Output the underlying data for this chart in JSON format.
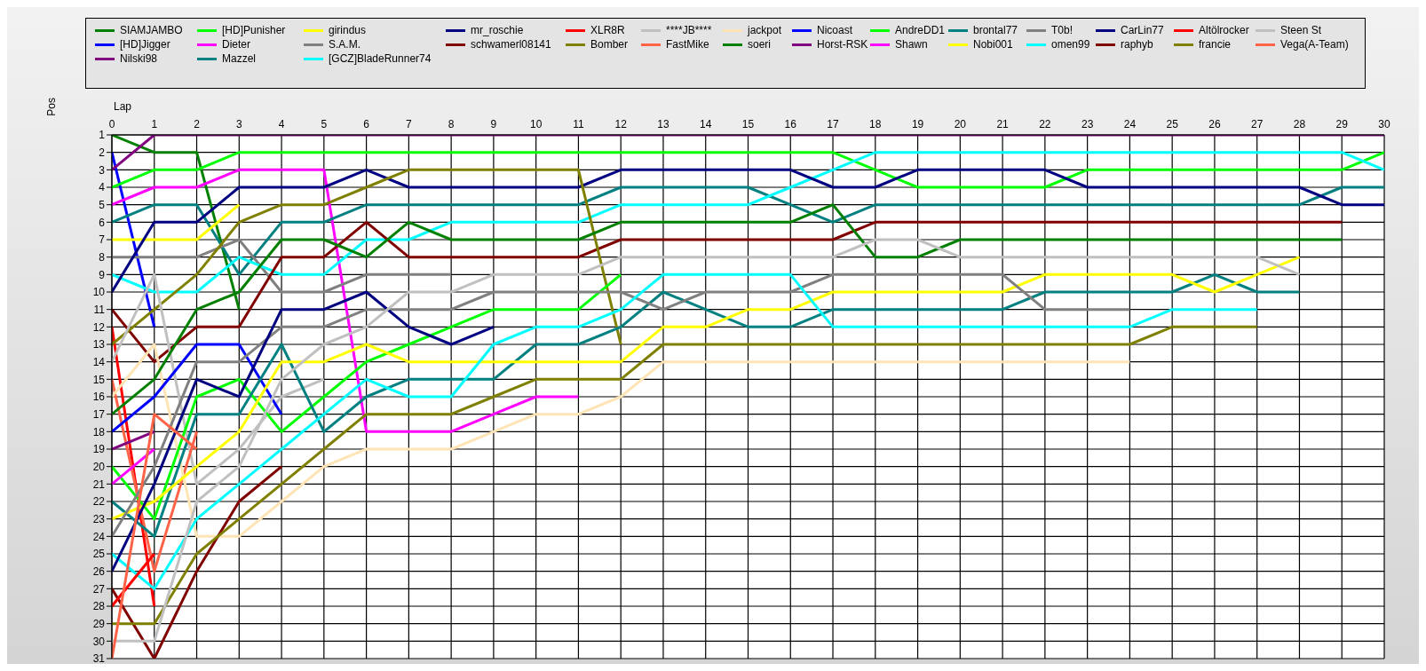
{
  "chart_data": {
    "type": "line",
    "xlabel": "Lap",
    "ylabel": "Pos",
    "legend": "top",
    "grid": true,
    "x": [
      0,
      1,
      2,
      3,
      4,
      5,
      6,
      7,
      8,
      9,
      10,
      11,
      12,
      13,
      14,
      15,
      16,
      17,
      18,
      19,
      20,
      21,
      22,
      23,
      24,
      25,
      26,
      27,
      28,
      29,
      30
    ],
    "xlim": [
      0,
      30
    ],
    "xticks": [
      0,
      1,
      2,
      3,
      4,
      5,
      6,
      7,
      8,
      9,
      10,
      11,
      12,
      13,
      14,
      15,
      16,
      17,
      18,
      19,
      20,
      21,
      22,
      23,
      24,
      25,
      26,
      27,
      28,
      29,
      30
    ],
    "ylim": [
      31,
      1
    ],
    "yticks": [
      1,
      2,
      3,
      4,
      5,
      6,
      7,
      8,
      9,
      10,
      11,
      12,
      13,
      14,
      15,
      16,
      17,
      18,
      19,
      20,
      21,
      22,
      23,
      24,
      25,
      26,
      27,
      28,
      29,
      30,
      31
    ],
    "series": [
      {
        "name": "SIAMJAMBO",
        "color": "#008000",
        "values": [
          1,
          2,
          2,
          11,
          null,
          null,
          null,
          null,
          null,
          null,
          null,
          null,
          null,
          null,
          null,
          null,
          null,
          null,
          null,
          null,
          null,
          null,
          null,
          null,
          null,
          null,
          null,
          null,
          null,
          null,
          null
        ]
      },
      {
        "name": "[HD]Jigger",
        "color": "#0000ff",
        "values": [
          2,
          12,
          null,
          null,
          null,
          null,
          null,
          null,
          null,
          null,
          null,
          null,
          null,
          null,
          null,
          null,
          null,
          null,
          null,
          null,
          null,
          null,
          null,
          null,
          null,
          null,
          null,
          null,
          null,
          null,
          null
        ]
      },
      {
        "name": "Nilski98",
        "color": "#800080",
        "values": [
          3,
          1,
          1,
          1,
          1,
          1,
          1,
          1,
          1,
          1,
          1,
          1,
          1,
          1,
          1,
          1,
          1,
          1,
          1,
          1,
          1,
          1,
          1,
          1,
          1,
          1,
          1,
          1,
          1,
          1,
          1
        ]
      },
      {
        "name": "[HD]Punisher",
        "color": "#00ff00",
        "values": [
          4,
          3,
          3,
          2,
          2,
          2,
          2,
          2,
          2,
          2,
          2,
          2,
          2,
          2,
          2,
          2,
          2,
          2,
          3,
          4,
          4,
          4,
          4,
          3,
          3,
          3,
          3,
          3,
          3,
          3,
          2
        ]
      },
      {
        "name": "Dieter",
        "color": "#ff00ff",
        "values": [
          5,
          4,
          4,
          3,
          3,
          3,
          18,
          18,
          18,
          17,
          16,
          16,
          null,
          null,
          null,
          null,
          null,
          null,
          null,
          null,
          null,
          null,
          null,
          null,
          null,
          null,
          null,
          null,
          null,
          null,
          null
        ]
      },
      {
        "name": "Mazzel",
        "color": "#008080",
        "values": [
          6,
          5,
          5,
          9,
          6,
          6,
          5,
          5,
          5,
          5,
          5,
          5,
          4,
          4,
          4,
          4,
          5,
          6,
          5,
          5,
          5,
          5,
          5,
          5,
          5,
          5,
          5,
          5,
          5,
          4,
          4
        ]
      },
      {
        "name": "girindus",
        "color": "#ffff00",
        "values": [
          7,
          7,
          7,
          5,
          null,
          null,
          null,
          null,
          null,
          null,
          null,
          null,
          null,
          null,
          null,
          null,
          null,
          null,
          null,
          null,
          null,
          null,
          null,
          null,
          null,
          null,
          null,
          null,
          null,
          null,
          null
        ]
      },
      {
        "name": "S.A.M.",
        "color": "#808080",
        "values": [
          8,
          8,
          8,
          7,
          10,
          10,
          9,
          9,
          9,
          null,
          null,
          null,
          null,
          null,
          null,
          null,
          null,
          null,
          null,
          null,
          null,
          null,
          null,
          null,
          null,
          null,
          null,
          null,
          null,
          null,
          null
        ]
      },
      {
        "name": "[GCZ]BladeRunner74",
        "color": "#00ffff",
        "values": [
          9,
          10,
          10,
          8,
          9,
          9,
          7,
          7,
          6,
          6,
          6,
          6,
          5,
          5,
          5,
          5,
          4,
          3,
          2,
          2,
          2,
          2,
          2,
          2,
          2,
          2,
          2,
          2,
          2,
          2,
          3
        ]
      },
      {
        "name": "mr_roschie",
        "color": "#000080",
        "values": [
          10,
          6,
          6,
          4,
          4,
          4,
          3,
          4,
          4,
          4,
          4,
          4,
          3,
          3,
          3,
          3,
          3,
          4,
          4,
          3,
          3,
          3,
          3,
          4,
          4,
          4,
          4,
          4,
          4,
          5,
          5
        ]
      },
      {
        "name": "schwamerl08141",
        "color": "#800000",
        "values": [
          11,
          14,
          12,
          12,
          8,
          8,
          6,
          8,
          8,
          8,
          8,
          8,
          7,
          7,
          7,
          7,
          7,
          7,
          6,
          6,
          6,
          6,
          6,
          6,
          6,
          6,
          6,
          6,
          6,
          6,
          null
        ]
      },
      {
        "name": "XLR8R",
        "color": "#ff0000",
        "values": [
          12,
          28,
          null,
          null,
          null,
          null,
          null,
          null,
          null,
          null,
          null,
          null,
          null,
          null,
          null,
          null,
          null,
          null,
          null,
          null,
          null,
          null,
          null,
          null,
          null,
          null,
          null,
          null,
          null,
          null,
          null
        ]
      },
      {
        "name": "Bomber",
        "color": "#808000",
        "values": [
          13,
          11,
          9,
          6,
          5,
          5,
          4,
          3,
          3,
          3,
          3,
          3,
          13,
          null,
          null,
          null,
          null,
          null,
          null,
          null,
          null,
          null,
          null,
          null,
          null,
          null,
          null,
          null,
          null,
          null,
          null
        ]
      },
      {
        "name": "****JB****",
        "color": "#c0c0c0",
        "values": [
          14,
          9,
          21,
          19,
          16,
          15,
          null,
          null,
          null,
          null,
          null,
          null,
          null,
          null,
          null,
          null,
          null,
          null,
          null,
          null,
          null,
          null,
          null,
          null,
          null,
          null,
          null,
          null,
          null,
          null,
          null
        ]
      },
      {
        "name": "FastMike",
        "color": "#ff6347",
        "values": [
          15,
          26,
          18,
          null,
          null,
          null,
          null,
          null,
          null,
          null,
          null,
          null,
          null,
          null,
          null,
          null,
          null,
          null,
          null,
          null,
          null,
          null,
          null,
          null,
          null,
          null,
          null,
          null,
          null,
          null,
          null
        ]
      },
      {
        "name": "jackpot",
        "color": "#ffe4b5",
        "values": [
          16,
          13,
          24,
          24,
          22,
          20,
          19,
          19,
          19,
          18,
          17,
          17,
          16,
          14,
          14,
          14,
          14,
          14,
          14,
          14,
          14,
          14,
          14,
          14,
          14,
          null,
          null,
          null,
          null,
          null,
          null
        ]
      },
      {
        "name": "soeri",
        "color": "#008000",
        "values": [
          17,
          15,
          11,
          10,
          7,
          7,
          8,
          6,
          7,
          7,
          7,
          7,
          6,
          6,
          6,
          6,
          6,
          5,
          8,
          8,
          7,
          7,
          7,
          7,
          7,
          7,
          7,
          7,
          7,
          7,
          null
        ]
      },
      {
        "name": "Nicoast",
        "color": "#0000ff",
        "values": [
          18,
          16,
          13,
          13,
          17,
          null,
          null,
          null,
          null,
          null,
          null,
          null,
          null,
          null,
          null,
          null,
          null,
          null,
          null,
          null,
          null,
          null,
          null,
          null,
          null,
          null,
          null,
          null,
          null,
          null,
          null
        ]
      },
      {
        "name": "Horst-RSK",
        "color": "#800080",
        "values": [
          19,
          18,
          null,
          null,
          null,
          null,
          null,
          null,
          null,
          null,
          null,
          null,
          null,
          null,
          null,
          null,
          null,
          null,
          null,
          null,
          null,
          null,
          null,
          null,
          null,
          null,
          null,
          null,
          null,
          null,
          null
        ]
      },
      {
        "name": "AndreDD1",
        "color": "#00ff00",
        "values": [
          20,
          23,
          16,
          15,
          18,
          16,
          14,
          13,
          12,
          11,
          11,
          11,
          9,
          null,
          null,
          null,
          null,
          null,
          null,
          null,
          null,
          null,
          null,
          null,
          null,
          null,
          null,
          null,
          null,
          null,
          null
        ]
      },
      {
        "name": "Shawn",
        "color": "#ff00ff",
        "values": [
          21,
          19,
          null,
          null,
          null,
          null,
          null,
          null,
          null,
          null,
          null,
          null,
          null,
          null,
          null,
          null,
          null,
          null,
          null,
          null,
          null,
          null,
          null,
          null,
          null,
          null,
          null,
          null,
          null,
          null,
          null
        ]
      },
      {
        "name": "brontal77",
        "color": "#008080",
        "values": [
          22,
          24,
          17,
          17,
          13,
          18,
          16,
          15,
          15,
          15,
          13,
          13,
          12,
          10,
          11,
          12,
          12,
          11,
          11,
          11,
          11,
          11,
          10,
          10,
          10,
          10,
          9,
          10,
          10,
          null,
          null
        ]
      },
      {
        "name": "Nobi001",
        "color": "#ffff00",
        "values": [
          23,
          22,
          20,
          18,
          14,
          14,
          13,
          14,
          14,
          14,
          14,
          14,
          14,
          12,
          12,
          11,
          11,
          10,
          10,
          10,
          10,
          10,
          9,
          9,
          9,
          9,
          10,
          9,
          8,
          null,
          null
        ]
      },
      {
        "name": "T0b!",
        "color": "#808080",
        "values": [
          24,
          20,
          14,
          14,
          12,
          12,
          11,
          11,
          11,
          10,
          10,
          10,
          10,
          11,
          10,
          10,
          10,
          9,
          9,
          9,
          9,
          9,
          11,
          11,
          11,
          null,
          null,
          null,
          null,
          null,
          null
        ]
      },
      {
        "name": "omen99",
        "color": "#00ffff",
        "values": [
          25,
          27,
          23,
          21,
          19,
          17,
          15,
          16,
          16,
          13,
          12,
          12,
          11,
          9,
          9,
          9,
          9,
          12,
          12,
          12,
          12,
          12,
          12,
          12,
          12,
          11,
          11,
          11,
          null,
          null,
          null
        ]
      },
      {
        "name": "CarLin77",
        "color": "#000080",
        "values": [
          26,
          21,
          15,
          16,
          11,
          11,
          10,
          12,
          13,
          12,
          null,
          null,
          null,
          null,
          null,
          null,
          null,
          null,
          null,
          null,
          null,
          null,
          null,
          null,
          null,
          null,
          null,
          null,
          null,
          null,
          null
        ]
      },
      {
        "name": "raphyb",
        "color": "#800000",
        "values": [
          27,
          31,
          26,
          22,
          20,
          null,
          null,
          null,
          null,
          null,
          null,
          null,
          null,
          null,
          null,
          null,
          null,
          null,
          null,
          null,
          null,
          null,
          null,
          null,
          null,
          null,
          null,
          null,
          null,
          null,
          null
        ]
      },
      {
        "name": "Altölrocker",
        "color": "#ff0000",
        "values": [
          28,
          25,
          null,
          null,
          null,
          null,
          null,
          null,
          null,
          null,
          null,
          null,
          null,
          null,
          null,
          null,
          null,
          null,
          null,
          null,
          null,
          null,
          null,
          null,
          null,
          null,
          null,
          null,
          null,
          null,
          null
        ]
      },
      {
        "name": "francie",
        "color": "#808000",
        "values": [
          29,
          29,
          25,
          23,
          21,
          19,
          17,
          17,
          17,
          16,
          15,
          15,
          15,
          13,
          13,
          13,
          13,
          13,
          13,
          13,
          13,
          13,
          13,
          13,
          13,
          12,
          12,
          12,
          null,
          null,
          null
        ]
      },
      {
        "name": "Steen St",
        "color": "#c0c0c0",
        "values": [
          30,
          30,
          22,
          20,
          15,
          13,
          12,
          10,
          10,
          9,
          9,
          9,
          8,
          8,
          8,
          8,
          8,
          8,
          7,
          7,
          8,
          8,
          8,
          8,
          8,
          8,
          8,
          8,
          9,
          null,
          null
        ]
      },
      {
        "name": "Vega(A-Team)",
        "color": "#ff6347",
        "values": [
          31,
          17,
          19,
          null,
          null,
          null,
          null,
          null,
          null,
          null,
          null,
          null,
          null,
          null,
          null,
          null,
          null,
          null,
          null,
          null,
          null,
          null,
          null,
          null,
          null,
          null,
          null,
          null,
          null,
          null,
          null
        ]
      }
    ]
  }
}
